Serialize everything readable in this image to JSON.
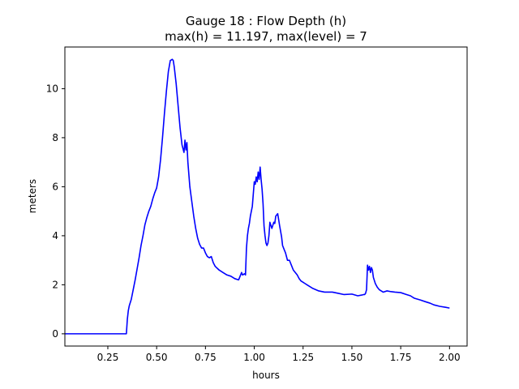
{
  "chart_data": {
    "type": "line",
    "title": "Gauge 18 : Flow Depth (h)",
    "subtitle": "max(h) =  11.197,    max(level) = 7",
    "xlabel": "hours",
    "ylabel": "meters",
    "xlim": [
      0.03,
      2.09
    ],
    "ylim": [
      -0.5,
      11.7
    ],
    "xticks": [
      0.25,
      0.5,
      0.75,
      1.0,
      1.25,
      1.5,
      1.75,
      2.0
    ],
    "xtick_labels": [
      "0.25",
      "0.50",
      "0.75",
      "1.00",
      "1.25",
      "1.50",
      "1.75",
      "2.00"
    ],
    "yticks": [
      0,
      2,
      4,
      6,
      8,
      10
    ],
    "ytick_labels": [
      "0",
      "2",
      "4",
      "6",
      "8",
      "10"
    ],
    "grid": false,
    "series": [
      {
        "color": "#0000ff",
        "x": [
          0.03,
          0.1,
          0.2,
          0.3,
          0.345,
          0.35,
          0.355,
          0.36,
          0.37,
          0.38,
          0.39,
          0.4,
          0.41,
          0.42,
          0.43,
          0.44,
          0.45,
          0.46,
          0.47,
          0.48,
          0.49,
          0.5,
          0.51,
          0.52,
          0.53,
          0.54,
          0.55,
          0.56,
          0.57,
          0.58,
          0.585,
          0.59,
          0.6,
          0.61,
          0.62,
          0.63,
          0.64,
          0.645,
          0.65,
          0.655,
          0.66,
          0.67,
          0.68,
          0.69,
          0.7,
          0.71,
          0.72,
          0.73,
          0.74,
          0.75,
          0.76,
          0.77,
          0.78,
          0.79,
          0.8,
          0.82,
          0.84,
          0.86,
          0.88,
          0.9,
          0.92,
          0.935,
          0.94,
          0.95,
          0.955,
          0.96,
          0.965,
          0.97,
          0.975,
          0.98,
          0.99,
          1.0,
          1.005,
          1.01,
          1.015,
          1.02,
          1.025,
          1.03,
          1.035,
          1.04,
          1.045,
          1.05,
          1.055,
          1.06,
          1.065,
          1.07,
          1.075,
          1.08,
          1.09,
          1.1,
          1.105,
          1.11,
          1.12,
          1.13,
          1.14,
          1.145,
          1.15,
          1.155,
          1.16,
          1.17,
          1.18,
          1.19,
          1.2,
          1.21,
          1.22,
          1.23,
          1.24,
          1.25,
          1.26,
          1.27,
          1.28,
          1.3,
          1.33,
          1.36,
          1.4,
          1.43,
          1.46,
          1.5,
          1.53,
          1.55,
          1.56,
          1.565,
          1.57,
          1.575,
          1.58,
          1.585,
          1.59,
          1.595,
          1.6,
          1.605,
          1.61,
          1.62,
          1.63,
          1.64,
          1.66,
          1.68,
          1.7,
          1.72,
          1.75,
          1.78,
          1.8,
          1.82,
          1.85,
          1.88,
          1.9,
          1.92,
          1.95,
          1.98,
          2.0
        ],
        "y": [
          0,
          0,
          0,
          0,
          0,
          0.6,
          0.95,
          1.15,
          1.4,
          1.8,
          2.2,
          2.65,
          3.1,
          3.6,
          4.0,
          4.45,
          4.75,
          5.0,
          5.2,
          5.5,
          5.75,
          5.95,
          6.4,
          7.1,
          8.0,
          9.0,
          9.9,
          10.7,
          11.15,
          11.197,
          11.15,
          10.9,
          10.2,
          9.3,
          8.4,
          7.7,
          7.4,
          7.9,
          7.5,
          7.8,
          7.0,
          6.0,
          5.4,
          4.8,
          4.3,
          3.9,
          3.65,
          3.5,
          3.5,
          3.3,
          3.15,
          3.1,
          3.15,
          2.9,
          2.75,
          2.6,
          2.5,
          2.4,
          2.35,
          2.25,
          2.2,
          2.5,
          2.4,
          2.45,
          2.4,
          3.5,
          4.0,
          4.3,
          4.5,
          4.8,
          5.2,
          6.2,
          6.1,
          6.4,
          6.2,
          6.6,
          6.3,
          6.8,
          6.3,
          5.9,
          5.3,
          4.4,
          4.0,
          3.7,
          3.6,
          3.7,
          4.0,
          4.55,
          4.3,
          4.55,
          4.5,
          4.8,
          4.9,
          4.4,
          3.95,
          3.6,
          3.5,
          3.4,
          3.3,
          3.0,
          3.0,
          2.8,
          2.6,
          2.5,
          2.4,
          2.25,
          2.15,
          2.1,
          2.05,
          2.0,
          1.95,
          1.85,
          1.75,
          1.7,
          1.7,
          1.65,
          1.6,
          1.62,
          1.55,
          1.58,
          1.6,
          1.6,
          1.65,
          1.8,
          2.8,
          2.6,
          2.75,
          2.5,
          2.7,
          2.6,
          2.3,
          2.05,
          1.9,
          1.8,
          1.7,
          1.75,
          1.72,
          1.7,
          1.68,
          1.6,
          1.55,
          1.45,
          1.38,
          1.3,
          1.25,
          1.18,
          1.12,
          1.08,
          1.05
        ]
      }
    ]
  }
}
